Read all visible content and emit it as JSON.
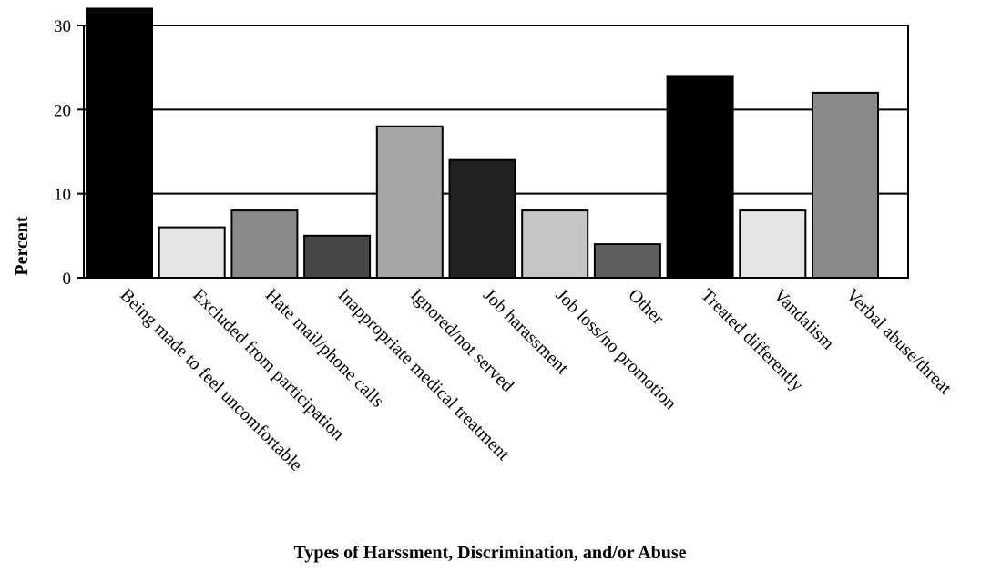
{
  "chart_data": {
    "type": "bar",
    "title": "",
    "xlabel": "Types of Harssment, Discrimination, and/or Abuse",
    "ylabel": "Percent",
    "ylim": [
      0,
      30
    ],
    "yticks": [
      0,
      10,
      20,
      30
    ],
    "grid": true,
    "categories": [
      "Being made to feel uncomfortable",
      "Excluded from participation",
      "Hate mail/phone calls",
      "Inappropriate medical treatment",
      "Ignored/not served",
      "Job harassment",
      "Job loss/no promotion",
      "Other",
      "Treated differently",
      "Vandalism",
      "Verbal abuse/threat"
    ],
    "values": [
      32,
      6,
      8,
      5,
      18,
      14,
      8,
      4,
      24,
      8,
      22
    ],
    "bar_colors": [
      "#000000",
      "#e6e6e6",
      "#8a8a8a",
      "#454545",
      "#a6a6a6",
      "#222222",
      "#c6c6c6",
      "#5f5f5f",
      "#000000",
      "#e6e6e6",
      "#8a8a8a"
    ]
  }
}
